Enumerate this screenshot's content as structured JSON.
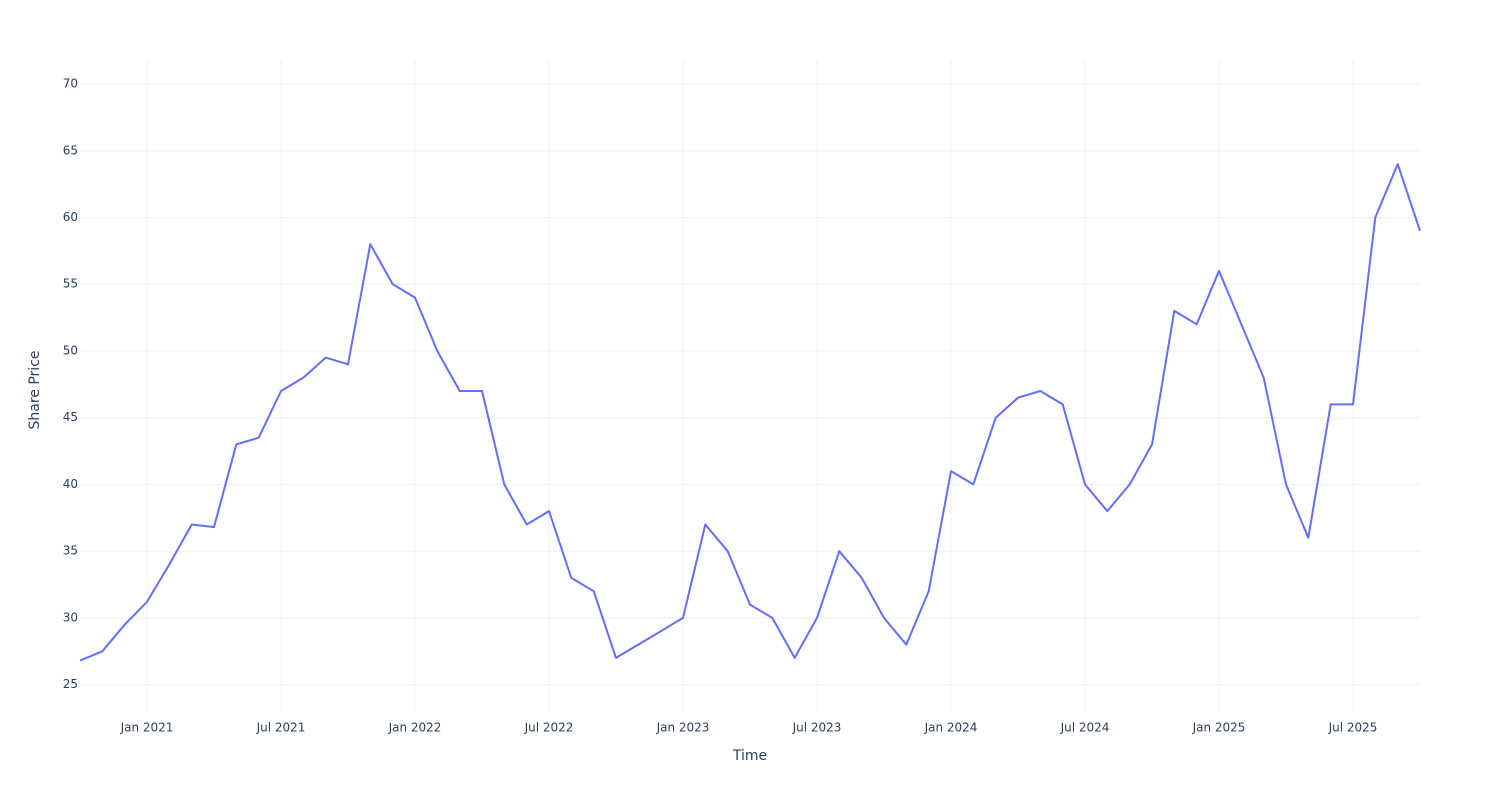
{
  "chart_data": {
    "type": "line",
    "x_label": "Time",
    "y_label": "Share Price",
    "x": [
      "2020-10",
      "2020-11",
      "2020-12",
      "2021-01",
      "2021-02",
      "2021-03",
      "2021-04",
      "2021-05",
      "2021-06",
      "2021-07",
      "2021-08",
      "2021-09",
      "2021-10",
      "2021-11",
      "2021-12",
      "2022-01",
      "2022-02",
      "2022-03",
      "2022-04",
      "2022-05",
      "2022-06",
      "2022-07",
      "2022-08",
      "2022-09",
      "2022-10",
      "2022-11",
      "2022-12",
      "2023-01",
      "2023-02",
      "2023-03",
      "2023-04",
      "2023-05",
      "2023-06",
      "2023-07",
      "2023-08",
      "2023-09",
      "2023-10",
      "2023-11",
      "2023-12",
      "2024-01",
      "2024-02",
      "2024-03",
      "2024-04",
      "2024-05",
      "2024-06",
      "2024-07",
      "2024-08",
      "2024-09",
      "2024-10",
      "2024-11",
      "2024-12",
      "2025-01",
      "2025-02",
      "2025-03",
      "2025-04",
      "2025-05",
      "2025-06",
      "2025-07",
      "2025-08",
      "2025-09",
      "2025-10"
    ],
    "series": [
      {
        "name": "Share Price",
        "color": "#636efa",
        "values": [
          26.8,
          27.5,
          29.5,
          31.2,
          34,
          37,
          36.8,
          43,
          43.5,
          47,
          48,
          49.5,
          49,
          58,
          55,
          54,
          50,
          47,
          47,
          40,
          37,
          38,
          33,
          32,
          27,
          28,
          29,
          30,
          37,
          35,
          31,
          30,
          27,
          30,
          35,
          33,
          30,
          28,
          32,
          41,
          40,
          45,
          46.5,
          47,
          46,
          40,
          38,
          40,
          43,
          53,
          52,
          56,
          52,
          48,
          40,
          36,
          46,
          46,
          60,
          64,
          59
        ]
      }
    ],
    "xlim": [
      "2020-10",
      "2025-10"
    ],
    "xticks": [
      {
        "value": "2021-01",
        "label": "Jan 2021"
      },
      {
        "value": "2021-07",
        "label": "Jul 2021"
      },
      {
        "value": "2022-01",
        "label": "Jan 2022"
      },
      {
        "value": "2022-07",
        "label": "Jul 2022"
      },
      {
        "value": "2023-01",
        "label": "Jan 2023"
      },
      {
        "value": "2023-07",
        "label": "Jul 2023"
      },
      {
        "value": "2024-01",
        "label": "Jan 2024"
      },
      {
        "value": "2024-07",
        "label": "Jul 2024"
      },
      {
        "value": "2025-01",
        "label": "Jan 2025"
      },
      {
        "value": "2025-07",
        "label": "Jul 2025"
      }
    ],
    "ylim": [
      23.1,
      71.8
    ],
    "yticks": [
      25,
      30,
      35,
      40,
      45,
      50,
      55,
      60,
      65,
      70
    ],
    "grid": true
  }
}
